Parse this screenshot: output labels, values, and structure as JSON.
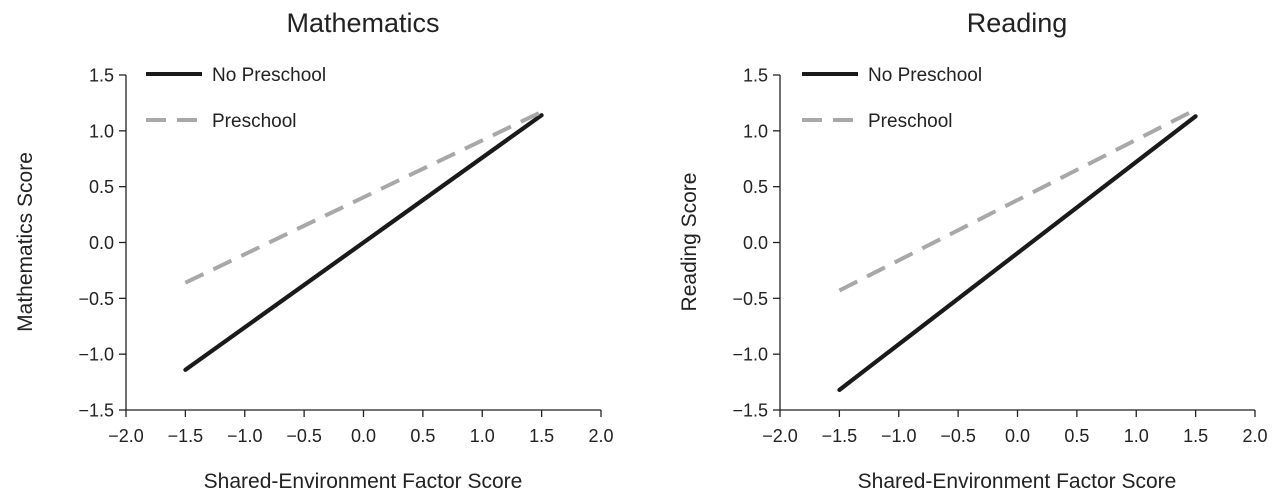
{
  "chart_data": [
    {
      "type": "line",
      "title": "Mathematics",
      "xlabel": "Shared-Environment Factor Score",
      "ylabel": "Mathematics Score",
      "xlim": [
        -2.0,
        2.0
      ],
      "ylim": [
        -1.5,
        1.5
      ],
      "xticks": [
        "−2.0",
        "−1.5",
        "−1.0",
        "−0.5",
        "0.0",
        "0.5",
        "1.0",
        "1.5",
        "2.0"
      ],
      "yticks": [
        "−1.5",
        "−1.0",
        "−0.5",
        "0.0",
        "0.5",
        "1.0",
        "1.5"
      ],
      "grid": false,
      "legend_position": "top-left",
      "series": [
        {
          "name": "No Preschool",
          "color": "#1a1a1a",
          "style": "solid",
          "x": [
            -1.5,
            1.5
          ],
          "y": [
            -1.14,
            1.14
          ]
        },
        {
          "name": "Preschool",
          "color": "#a8a8a8",
          "style": "dashed",
          "x": [
            -1.5,
            1.5
          ],
          "y": [
            -0.36,
            1.17
          ]
        }
      ]
    },
    {
      "type": "line",
      "title": "Reading",
      "xlabel": "Shared-Environment Factor Score",
      "ylabel": "Reading Score",
      "xlim": [
        -2.0,
        2.0
      ],
      "ylim": [
        -1.5,
        1.5
      ],
      "xticks": [
        "−2.0",
        "−1.5",
        "−1.0",
        "−0.5",
        "0.0",
        "0.5",
        "1.0",
        "1.5",
        "2.0"
      ],
      "yticks": [
        "−1.5",
        "−1.0",
        "−0.5",
        "0.0",
        "0.5",
        "1.0",
        "1.5"
      ],
      "grid": false,
      "legend_position": "top-left",
      "series": [
        {
          "name": "No Preschool",
          "color": "#1a1a1a",
          "style": "solid",
          "x": [
            -1.5,
            1.5
          ],
          "y": [
            -1.32,
            1.13
          ]
        },
        {
          "name": "Preschool",
          "color": "#a8a8a8",
          "style": "dashed",
          "x": [
            -1.5,
            1.5
          ],
          "y": [
            -0.43,
            1.19
          ]
        }
      ]
    }
  ]
}
